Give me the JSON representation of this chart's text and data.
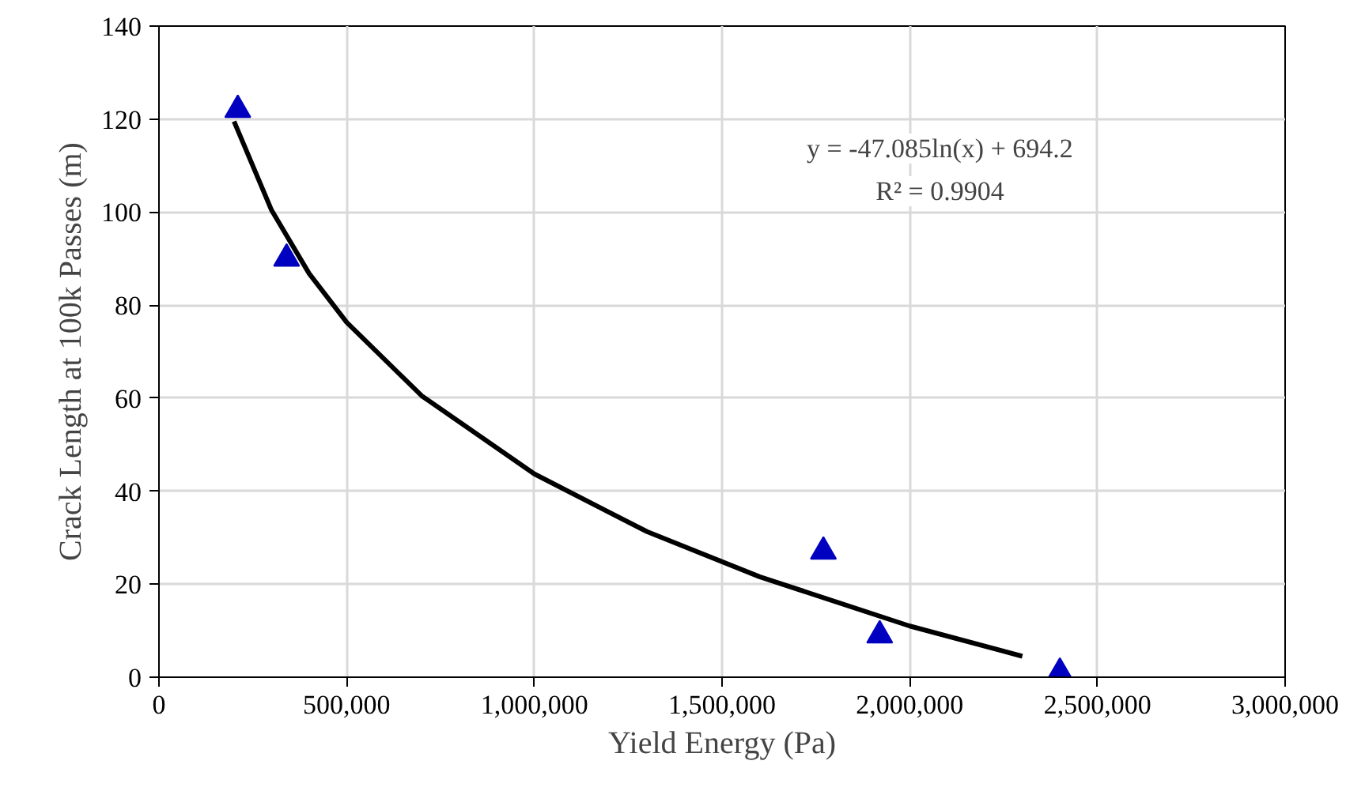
{
  "chart_data": {
    "type": "scatter",
    "xlabel": "Yield Energy (Pa)",
    "ylabel": "Crack Length at 100k Passes (m)",
    "xlim": [
      0,
      3000000
    ],
    "ylim": [
      0,
      140
    ],
    "xticks": [
      {
        "value": 0,
        "label": "0"
      },
      {
        "value": 500000,
        "label": "500,000"
      },
      {
        "value": 1000000,
        "label": "1,000,000"
      },
      {
        "value": 1500000,
        "label": "1,500,000"
      },
      {
        "value": 2000000,
        "label": "2,000,000"
      },
      {
        "value": 2500000,
        "label": "2,500,000"
      },
      {
        "value": 3000000,
        "label": "3,000,000"
      }
    ],
    "yticks": [
      0,
      20,
      40,
      60,
      80,
      100,
      120,
      140
    ],
    "grid": true,
    "marker": "triangle",
    "series": [
      {
        "color": "#0000c0",
        "x": [
          210000,
          340000,
          1770000,
          1920000,
          2400000
        ],
        "values": [
          122,
          90,
          27,
          9,
          1
        ]
      },
      {
        "type": "line",
        "color": "#000000",
        "line_style": "solid",
        "marker": "none",
        "x": [
          200000,
          300000,
          400000,
          500000,
          700000,
          1000000,
          1300000,
          1600000,
          2000000,
          2300000
        ],
        "values": [
          119.5,
          100.4,
          86.8,
          76.3,
          60.5,
          43.7,
          31.3,
          21.6,
          11.0,
          4.5
        ]
      }
    ],
    "annotations": [
      "y = -47.085ln(x) + 694.2",
      "R² = 0.9904"
    ]
  }
}
